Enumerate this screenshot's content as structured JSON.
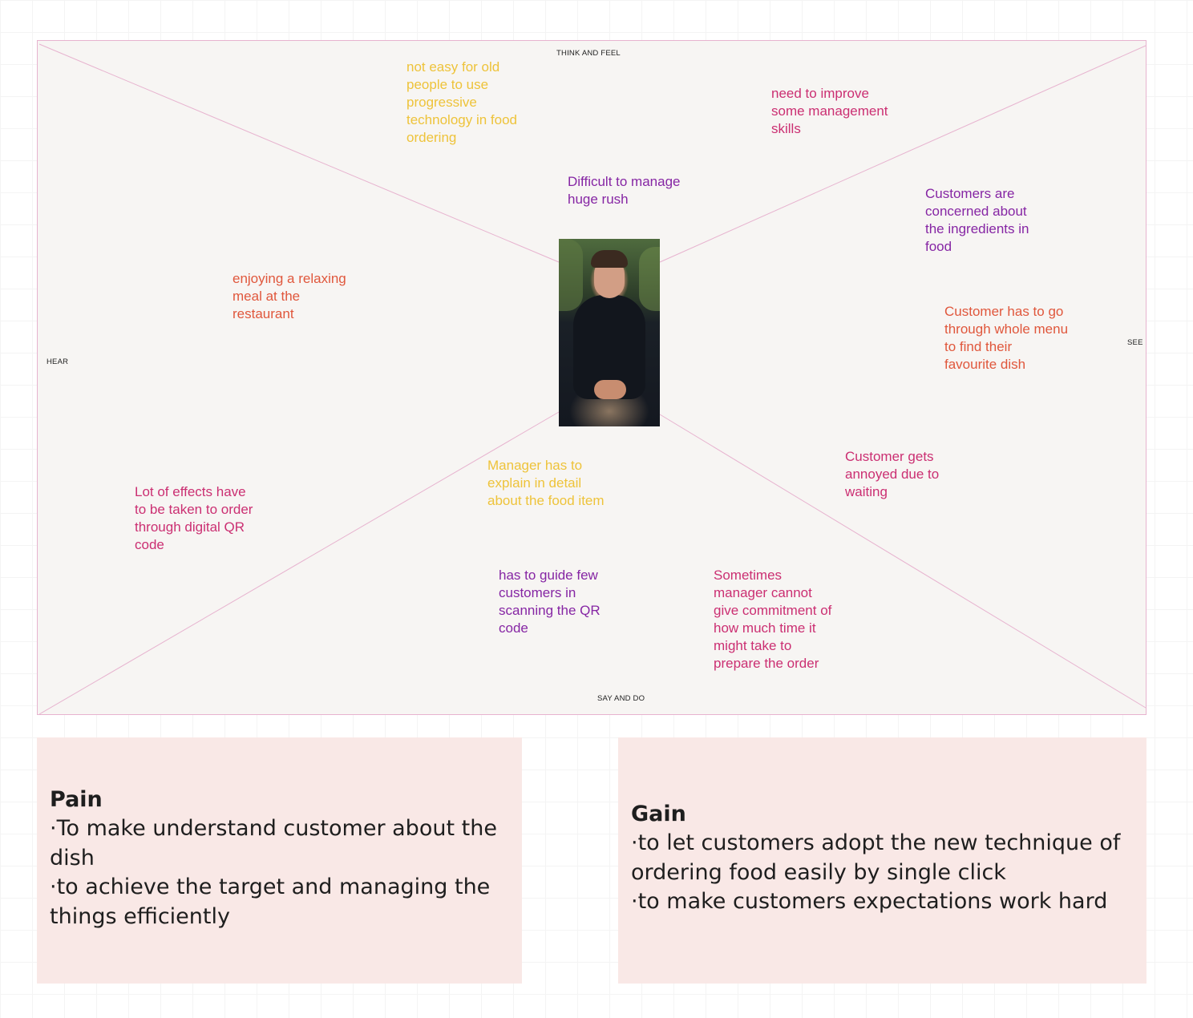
{
  "empathy_map": {
    "labels": {
      "think_feel": "THINK AND FEEL",
      "hear": "HEAR",
      "see": "SEE",
      "say_do": "SAY AND DO"
    },
    "colors": {
      "border": "#e7b3cf",
      "yellow": "#eec33a",
      "magenta": "#cb2f72",
      "purple": "#8626a4",
      "orange": "#e0573c"
    },
    "notes": {
      "old_people": "not easy for old\npeople to use\nprogressive\ntechnology  in food\nordering",
      "management_skills": "need to improve\nsome management\nskills",
      "huge_rush": "Difficult to manage\nhuge rush",
      "ingredients": "Customers are\nconcerned about\nthe ingredients in\nfood",
      "relaxing_meal": "enjoying a relaxing\nmeal at the\nrestaurant",
      "whole_menu": "Customer has to go\nthrough whole menu\nto find their\nfavourite dish",
      "annoyed_waiting": "Customer gets\nannoyed due to\nwaiting",
      "explain_detail": "Manager has to\nexplain in detail\nabout the food item",
      "qr_effort": "Lot of effects have\nto be taken to order\nthrough digital QR\ncode",
      "guide_customers": "has to guide few\ncustomers in\nscanning the QR\ncode",
      "commitment_time": "Sometimes\nmanager cannot\ngive commitment of\nhow much time it\nmight take to\nprepare the order"
    }
  },
  "pain": {
    "title": "Pain",
    "lines": [
      "·To make understand customer about the",
      "dish",
      "·to achieve the target and managing the",
      "things efficiently"
    ]
  },
  "gain": {
    "title": "Gain",
    "lines": [
      "·to let customers adopt the new technique of",
      "ordering food easily by single click",
      "·to make customers expectations work hard"
    ]
  }
}
